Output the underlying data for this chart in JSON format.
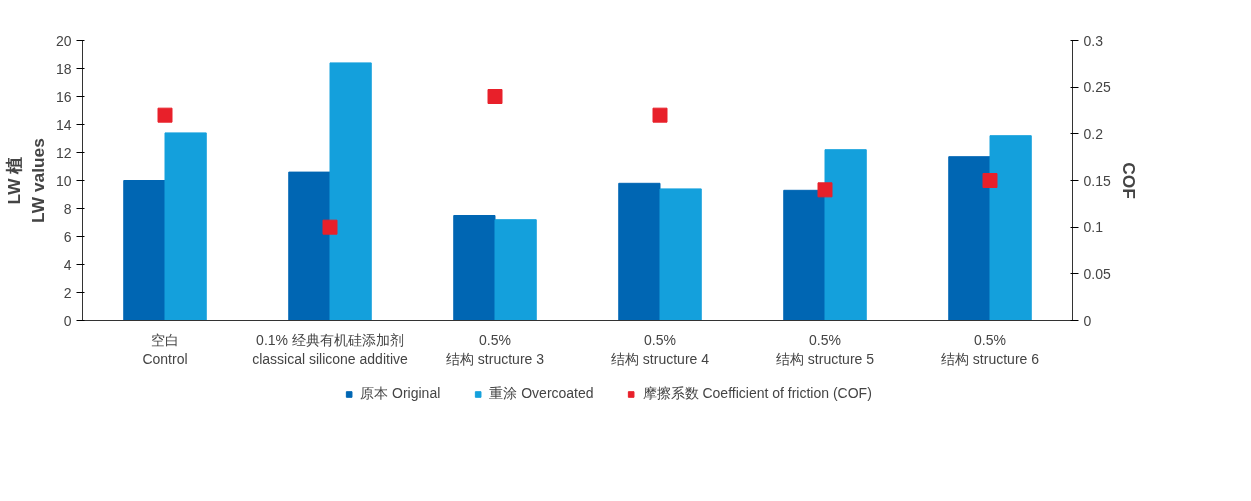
{
  "chart_data": {
    "type": "bar",
    "categories": [
      "空白\nControl",
      "0.1% 经典有机硅添加剂\nclassical silicone additive",
      "0.5%\n结构 structure 3",
      "0.5%\n结构 structure 4",
      "0.5%\n结构 structure 5",
      "0.5%\n结构 structure 6"
    ],
    "ylabel": "LW 植\nLW values",
    "y2label": "COF",
    "ylim": [
      0,
      20
    ],
    "yticks": [
      0,
      2,
      4,
      6,
      8,
      10,
      12,
      14,
      16,
      18,
      20
    ],
    "y2lim": [
      0,
      0.3
    ],
    "y2ticks": [
      0,
      {
        "value": 0.05,
        "label": "0.05"
      },
      {
        "value": 0.1,
        "label": "0.1"
      },
      {
        "value": 0.15,
        "label": "0.15"
      },
      {
        "value": 0.2,
        "label": "0.2"
      },
      {
        "value": 0.25,
        "label": "0.25"
      },
      {
        "value": 0.3,
        "label": "0.3"
      }
    ],
    "series": [
      {
        "name": "原本 Original",
        "color": "#0066b3",
        "values": [
          10.0,
          10.6,
          7.5,
          9.8,
          9.3,
          11.7
        ]
      },
      {
        "name": "重涂 Overcoated",
        "color": "#14a0dc",
        "values": [
          13.4,
          18.4,
          7.2,
          9.4,
          12.2,
          13.2
        ]
      },
      {
        "name": "摩擦系数 Coefficient of friction (COF)",
        "type": "scatter",
        "axis": "y2",
        "marker": "square",
        "color": "#e8202a",
        "values": [
          0.22,
          0.1,
          0.24,
          0.22,
          0.14,
          0.15
        ]
      }
    ],
    "grid": false,
    "legend": "bottom"
  }
}
